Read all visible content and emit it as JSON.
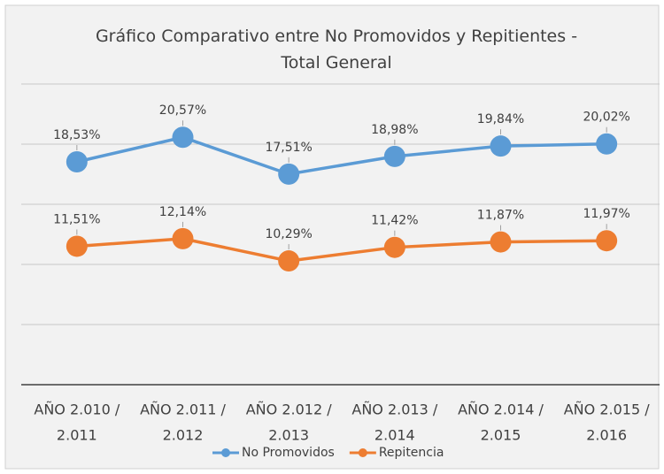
{
  "chart_data": {
    "type": "line",
    "title": "Gráfico Comparativo entre No Promovidos y Repitientes - Total General",
    "categories": [
      [
        "AÑO 2.010 /",
        "2.011"
      ],
      [
        "AÑO 2.011 /",
        "2.012"
      ],
      [
        "AÑO 2.012 /",
        "2.013"
      ],
      [
        "AÑO 2.013 /",
        "2.014"
      ],
      [
        "AÑO 2.014 /",
        "2.015"
      ],
      [
        "AÑO 2.015 /",
        "2.016"
      ]
    ],
    "series": [
      {
        "name": "No Promovidos",
        "color": "#5b9bd5",
        "values": [
          18.53,
          20.57,
          17.51,
          18.98,
          19.84,
          20.02
        ],
        "value_labels": [
          "18,53%",
          "20,57%",
          "17,51%",
          "18,98%",
          "19,84%",
          "20,02%"
        ]
      },
      {
        "name": "Repitencia",
        "color": "#ed7d31",
        "values": [
          11.51,
          12.14,
          10.29,
          11.42,
          11.87,
          11.97
        ],
        "value_labels": [
          "11,51%",
          "12,14%",
          "10,29%",
          "11,42%",
          "11,87%",
          "11,97%"
        ]
      }
    ],
    "ylim": [
      0,
      25
    ],
    "yticks": [
      0,
      5,
      10,
      15,
      20,
      25
    ],
    "grid": true,
    "legend": "bottom"
  }
}
